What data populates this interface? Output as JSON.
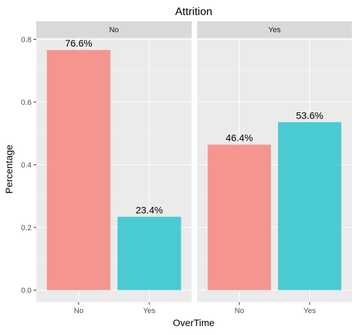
{
  "chart_data": {
    "type": "bar",
    "title": "Attrition",
    "xlabel": "OverTime",
    "ylabel": "Percentage",
    "ylim": [
      0,
      0.8
    ],
    "yticks": [
      0.0,
      0.2,
      0.4,
      0.6,
      0.8
    ],
    "ytick_labels": [
      "0.0",
      "0.2",
      "0.4",
      "0.6",
      "0.8"
    ],
    "grid": true,
    "categories": [
      "No",
      "Yes"
    ],
    "colors": {
      "No": "#f4908b",
      "Yes": "#2dc6cc"
    },
    "panels": [
      {
        "facet": "No",
        "values": [
          0.766,
          0.234
        ],
        "labels": [
          "76.6%",
          "23.4%"
        ]
      },
      {
        "facet": "Yes",
        "values": [
          0.464,
          0.536
        ],
        "labels": [
          "46.4%",
          "53.6%"
        ]
      }
    ]
  }
}
